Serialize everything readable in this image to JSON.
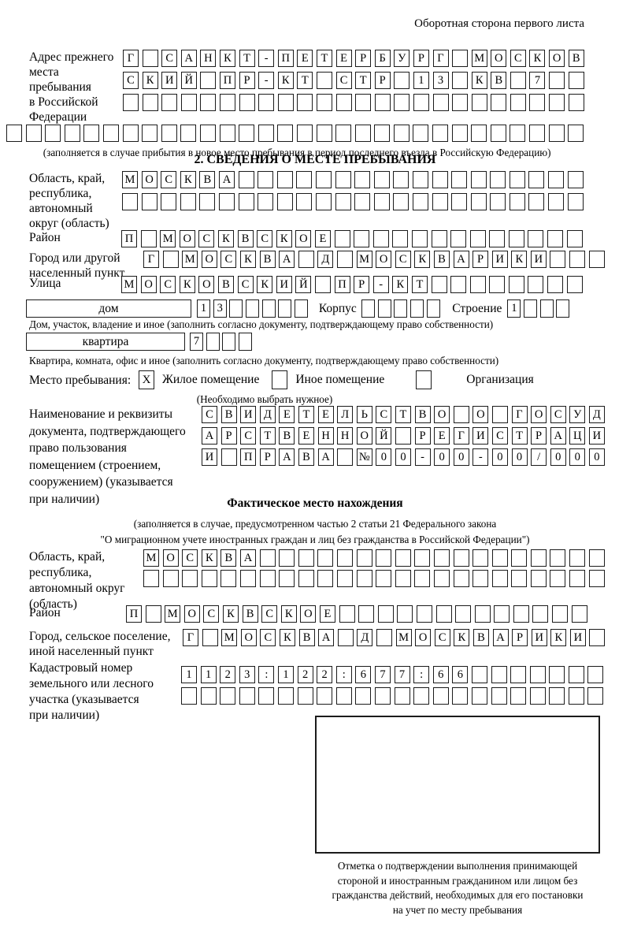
{
  "header_note": "Оборотная сторона первого листа",
  "prev_address": {
    "label_lines": [
      "Адрес прежнего",
      "места пребывания",
      "в Российской",
      "Федерации"
    ],
    "row1": {
      "text": "Г САНКТ-ПЕТЕРБУРГ МОСКОВ",
      "n": 24
    },
    "row2": {
      "text": "СКИЙ ПР-КТ СТР 13 КВ 7",
      "n": 24
    },
    "row3": {
      "text": "",
      "n": 24
    },
    "row4": {
      "text": "",
      "n": 30
    },
    "caption": "(заполняется в случае прибытия в новое место пребывания в период последнего въезда в Российскую Федерацию)"
  },
  "residence": {
    "title": "2. СВЕДЕНИЯ О МЕСТЕ ПРЕБЫВАНИЯ",
    "region": {
      "label_lines": [
        "Область, край,",
        "республика,",
        "автономный",
        "округ (область)"
      ],
      "row1": {
        "text": "МОСКВА",
        "n": 24
      },
      "row2": {
        "text": "",
        "n": 24
      }
    },
    "district": {
      "label": "Район",
      "row": {
        "text": "П МОСКВСКОЕ",
        "n": 24
      }
    },
    "city": {
      "label_lines": [
        "Город или другой",
        "населенный пункт"
      ],
      "row": {
        "text": "Г МОСКВА Д МОСКВАРИКИ",
        "n": 24
      }
    },
    "street": {
      "label": "Улица",
      "row": {
        "text": "МОСКОВСКИЙ ПР-КТ",
        "n": 24
      }
    },
    "house": {
      "box_label": "дом",
      "number": {
        "text": "13",
        "n": 7
      },
      "korpus_label": "Корпус",
      "korpus": {
        "text": "",
        "n": 5
      },
      "stroenie_label": "Строение",
      "stroenie": {
        "text": "1",
        "n": 4
      },
      "caption": "Дом, участок, владение и иное (заполнить согласно документу, подтверждающему право собственности)"
    },
    "apartment": {
      "box_label": "квартира",
      "number": {
        "text": "7",
        "n": 4
      },
      "caption": "Квартира, комната, офис и иное (заполнить согласно документу, подтверждающему право собственности)"
    },
    "stay_type": {
      "label": "Место пребывания:",
      "options": [
        {
          "label": "Жилое помещение",
          "mark": "X"
        },
        {
          "label": "Иное помещение",
          "mark": ""
        },
        {
          "label": "Организация",
          "mark": ""
        }
      ],
      "hint": "(Необходимо выбрать нужное)"
    },
    "document": {
      "label_lines": [
        "Наименование и реквизиты",
        "документа, подтверждающего",
        "право пользования",
        "помещением (строением,",
        "сооружением) (указывается",
        "при наличии)"
      ],
      "row1": {
        "text": "СВИДЕТЕЛЬСТВО О ГОСУД",
        "n": 21
      },
      "row2": {
        "text": "АРСТВЕННОЙ РЕГИСТРАЦИ",
        "n": 21
      },
      "row3": {
        "text": "И ПРАВА №00-00-00/000",
        "n": 21
      }
    }
  },
  "actual_location": {
    "title": "Фактическое место нахождения",
    "note_lines": [
      "(заполняется в случае, предусмотренном частью 2 статьи 21 Федерального закона",
      "\"О миграционном учете иностранных граждан и лиц без гражданства в Российской Федерации\")"
    ],
    "region": {
      "label_lines": [
        "Область, край,",
        "республика,",
        "автономный округ",
        "(область)"
      ],
      "row1": {
        "text": "МОСКВА",
        "n": 24
      },
      "row2": {
        "text": "",
        "n": 24
      }
    },
    "district": {
      "label": "Район",
      "row": {
        "text": "П МОСКВСКОЕ",
        "n": 24
      }
    },
    "city": {
      "label_lines": [
        "Город, сельское поселение,",
        "иной населенный пункт"
      ],
      "row": {
        "text": "Г МОСКВА Д МОСКВАРИКИ",
        "n": 22
      }
    },
    "cadastral": {
      "label_lines": [
        "Кадастровый номер",
        "земельного или лесного",
        "участка (указывается",
        "при наличии)"
      ],
      "row1": {
        "text": "1123:122:677:66",
        "n": 22
      },
      "row2": {
        "text": "",
        "n": 22
      }
    },
    "stamp_note_lines": [
      "Отметка о подтверждении выполнения принимающей",
      "стороной и иностранным гражданином или лицом без",
      "гражданства действий, необходимых для его постановки",
      "на учет по месту пребывания"
    ]
  }
}
